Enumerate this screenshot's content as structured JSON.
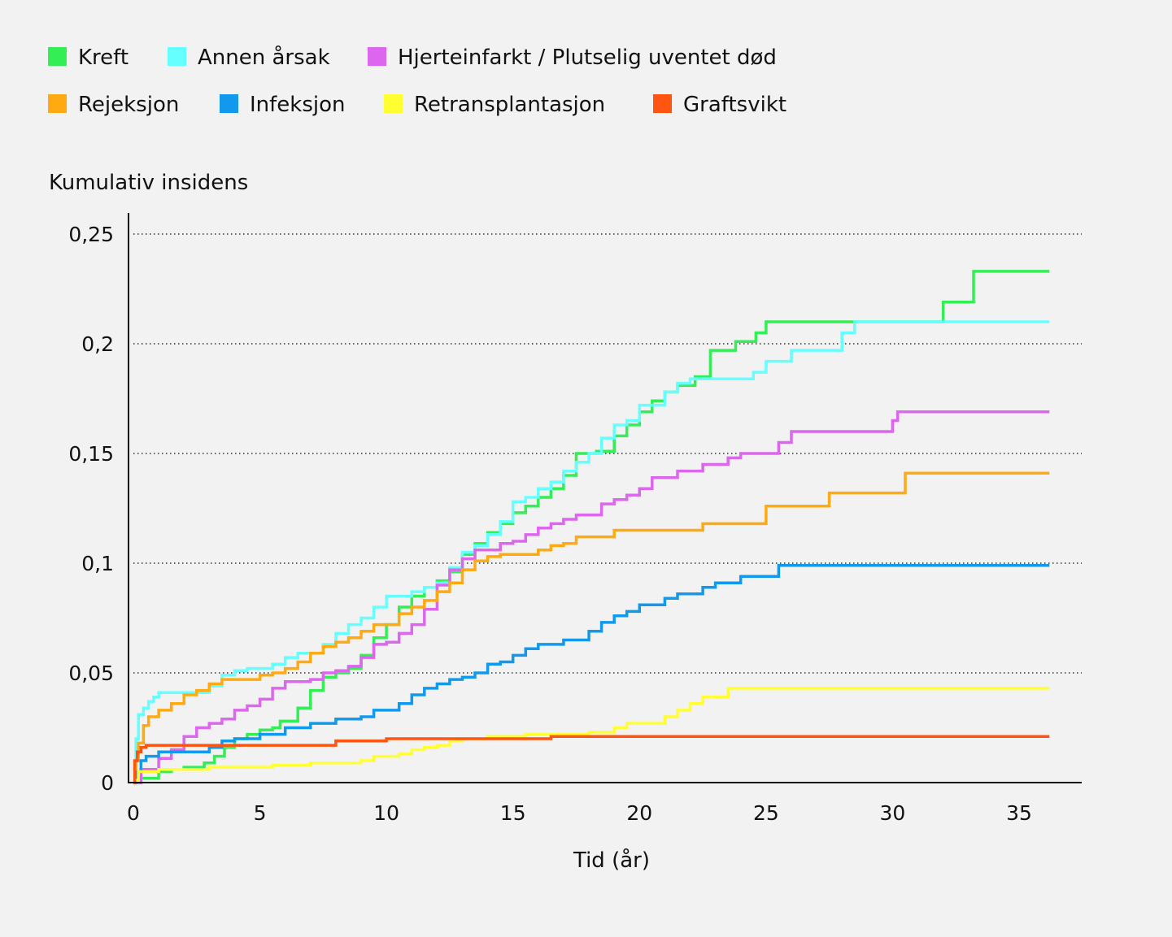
{
  "chart_data": {
    "type": "line",
    "step": true,
    "ylabel": "Kumulativ insidens",
    "xlabel": "Tid (år)",
    "xlim": [
      0,
      37.2
    ],
    "ylim": [
      0,
      0.25
    ],
    "x_ticks": [
      0,
      5,
      10,
      15,
      20,
      25,
      30,
      35
    ],
    "x_tick_labels": [
      "0",
      "5",
      "10",
      "15",
      "20",
      "25",
      "30",
      "35"
    ],
    "y_ticks": [
      0,
      0.05,
      0.1,
      0.15,
      0.2,
      0.25
    ],
    "y_tick_labels": [
      "0",
      "0,05",
      "0,1",
      "0,15",
      "0,2",
      "0,25"
    ],
    "grid": "horizontal dotted",
    "legend_position": "top",
    "series": [
      {
        "name": "Kreft",
        "color": "#33ee55",
        "points": [
          [
            0,
            0
          ],
          [
            0.3,
            0.002
          ],
          [
            1,
            0.005
          ],
          [
            1.5,
            0.006
          ],
          [
            2,
            0.007
          ],
          [
            2.8,
            0.009
          ],
          [
            3.2,
            0.012
          ],
          [
            3.6,
            0.016
          ],
          [
            4,
            0.02
          ],
          [
            4.5,
            0.022
          ],
          [
            5,
            0.024
          ],
          [
            5.5,
            0.025
          ],
          [
            5.8,
            0.028
          ],
          [
            6.5,
            0.034
          ],
          [
            7,
            0.042
          ],
          [
            7.5,
            0.048
          ],
          [
            8,
            0.05
          ],
          [
            8.5,
            0.052
          ],
          [
            9,
            0.058
          ],
          [
            9.5,
            0.066
          ],
          [
            10,
            0.072
          ],
          [
            10.5,
            0.08
          ],
          [
            11,
            0.085
          ],
          [
            11.5,
            0.089
          ],
          [
            12,
            0.092
          ],
          [
            12.5,
            0.096
          ],
          [
            13,
            0.104
          ],
          [
            13.5,
            0.109
          ],
          [
            14,
            0.114
          ],
          [
            14.5,
            0.118
          ],
          [
            15,
            0.123
          ],
          [
            15.5,
            0.126
          ],
          [
            16,
            0.13
          ],
          [
            16.5,
            0.134
          ],
          [
            17,
            0.14
          ],
          [
            17.5,
            0.15
          ],
          [
            18.3,
            0.151
          ],
          [
            19,
            0.158
          ],
          [
            19.5,
            0.163
          ],
          [
            20,
            0.169
          ],
          [
            20.5,
            0.174
          ],
          [
            21,
            0.178
          ],
          [
            21.5,
            0.181
          ],
          [
            22.2,
            0.185
          ],
          [
            22.8,
            0.197
          ],
          [
            23.8,
            0.201
          ],
          [
            24.6,
            0.205
          ],
          [
            25,
            0.21
          ],
          [
            32,
            0.219
          ],
          [
            33.2,
            0.233
          ],
          [
            36.2,
            0.233
          ]
        ]
      },
      {
        "name": "Annen årsak",
        "color": "#66ffff",
        "points": [
          [
            0,
            0.005
          ],
          [
            0.1,
            0.02
          ],
          [
            0.2,
            0.031
          ],
          [
            0.4,
            0.034
          ],
          [
            0.6,
            0.037
          ],
          [
            0.8,
            0.039
          ],
          [
            1,
            0.041
          ],
          [
            2,
            0.041
          ],
          [
            3,
            0.044
          ],
          [
            3.5,
            0.049
          ],
          [
            4,
            0.051
          ],
          [
            4.5,
            0.052
          ],
          [
            5.5,
            0.054
          ],
          [
            6,
            0.057
          ],
          [
            6.5,
            0.059
          ],
          [
            7.5,
            0.063
          ],
          [
            8,
            0.068
          ],
          [
            8.5,
            0.072
          ],
          [
            9,
            0.075
          ],
          [
            9.5,
            0.08
          ],
          [
            10,
            0.085
          ],
          [
            11,
            0.087
          ],
          [
            11.5,
            0.089
          ],
          [
            12,
            0.091
          ],
          [
            12.5,
            0.098
          ],
          [
            13,
            0.105
          ],
          [
            13.5,
            0.108
          ],
          [
            14,
            0.113
          ],
          [
            14.5,
            0.119
          ],
          [
            15,
            0.128
          ],
          [
            15.5,
            0.13
          ],
          [
            16,
            0.134
          ],
          [
            16.5,
            0.137
          ],
          [
            17,
            0.142
          ],
          [
            17.5,
            0.146
          ],
          [
            18,
            0.15
          ],
          [
            18.5,
            0.157
          ],
          [
            19,
            0.163
          ],
          [
            19.5,
            0.165
          ],
          [
            20,
            0.172
          ],
          [
            21,
            0.178
          ],
          [
            21.5,
            0.182
          ],
          [
            22,
            0.184
          ],
          [
            24.5,
            0.187
          ],
          [
            25,
            0.192
          ],
          [
            26,
            0.197
          ],
          [
            28,
            0.205
          ],
          [
            28.5,
            0.21
          ],
          [
            36.2,
            0.21
          ]
        ]
      },
      {
        "name": "Hjerteinfarkt / Plutselig uventet død",
        "color": "#dd66ee",
        "points": [
          [
            0,
            0
          ],
          [
            0.3,
            0.006
          ],
          [
            1,
            0.011
          ],
          [
            1.5,
            0.015
          ],
          [
            2,
            0.021
          ],
          [
            2.5,
            0.025
          ],
          [
            3,
            0.027
          ],
          [
            3.5,
            0.029
          ],
          [
            4,
            0.033
          ],
          [
            4.5,
            0.035
          ],
          [
            5,
            0.038
          ],
          [
            5.5,
            0.043
          ],
          [
            6,
            0.046
          ],
          [
            7,
            0.047
          ],
          [
            7.5,
            0.05
          ],
          [
            8,
            0.051
          ],
          [
            8.5,
            0.053
          ],
          [
            9,
            0.057
          ],
          [
            9.5,
            0.063
          ],
          [
            10,
            0.064
          ],
          [
            10.5,
            0.068
          ],
          [
            11,
            0.072
          ],
          [
            11.5,
            0.079
          ],
          [
            12,
            0.09
          ],
          [
            12.5,
            0.097
          ],
          [
            13,
            0.102
          ],
          [
            13.5,
            0.106
          ],
          [
            14.5,
            0.109
          ],
          [
            15,
            0.11
          ],
          [
            15.5,
            0.113
          ],
          [
            16,
            0.116
          ],
          [
            16.5,
            0.118
          ],
          [
            17,
            0.12
          ],
          [
            17.5,
            0.122
          ],
          [
            18.5,
            0.127
          ],
          [
            19,
            0.129
          ],
          [
            19.5,
            0.131
          ],
          [
            20,
            0.134
          ],
          [
            20.5,
            0.139
          ],
          [
            21.5,
            0.142
          ],
          [
            22.5,
            0.145
          ],
          [
            23.5,
            0.148
          ],
          [
            24,
            0.15
          ],
          [
            25.5,
            0.155
          ],
          [
            26,
            0.16
          ],
          [
            30,
            0.165
          ],
          [
            30.2,
            0.169
          ],
          [
            36.2,
            0.169
          ]
        ]
      },
      {
        "name": "Rejeksjon",
        "color": "#ffaa11",
        "points": [
          [
            0,
            0
          ],
          [
            0.1,
            0.01
          ],
          [
            0.2,
            0.018
          ],
          [
            0.4,
            0.026
          ],
          [
            0.6,
            0.03
          ],
          [
            1,
            0.033
          ],
          [
            1.5,
            0.036
          ],
          [
            2,
            0.04
          ],
          [
            2.5,
            0.042
          ],
          [
            3,
            0.045
          ],
          [
            3.5,
            0.047
          ],
          [
            5,
            0.049
          ],
          [
            5.5,
            0.05
          ],
          [
            6,
            0.052
          ],
          [
            6.5,
            0.055
          ],
          [
            7,
            0.059
          ],
          [
            7.5,
            0.062
          ],
          [
            8,
            0.064
          ],
          [
            8.5,
            0.066
          ],
          [
            9,
            0.069
          ],
          [
            9.5,
            0.072
          ],
          [
            10.5,
            0.077
          ],
          [
            11,
            0.08
          ],
          [
            11.5,
            0.083
          ],
          [
            12,
            0.087
          ],
          [
            12.5,
            0.091
          ],
          [
            13,
            0.097
          ],
          [
            13.5,
            0.101
          ],
          [
            14,
            0.103
          ],
          [
            14.5,
            0.104
          ],
          [
            16,
            0.106
          ],
          [
            16.5,
            0.108
          ],
          [
            17,
            0.109
          ],
          [
            17.5,
            0.112
          ],
          [
            19,
            0.115
          ],
          [
            22,
            0.115
          ],
          [
            22.5,
            0.118
          ],
          [
            25,
            0.126
          ],
          [
            27.5,
            0.132
          ],
          [
            30.5,
            0.141
          ],
          [
            36.2,
            0.141
          ]
        ]
      },
      {
        "name": "Infeksjon",
        "color": "#1199ee",
        "points": [
          [
            0,
            0
          ],
          [
            0.1,
            0.005
          ],
          [
            0.3,
            0.01
          ],
          [
            0.5,
            0.012
          ],
          [
            1,
            0.014
          ],
          [
            2,
            0.014
          ],
          [
            3,
            0.016
          ],
          [
            3.5,
            0.019
          ],
          [
            4,
            0.02
          ],
          [
            5,
            0.022
          ],
          [
            6,
            0.025
          ],
          [
            7,
            0.027
          ],
          [
            8,
            0.029
          ],
          [
            9,
            0.03
          ],
          [
            9.5,
            0.033
          ],
          [
            10.5,
            0.036
          ],
          [
            11,
            0.04
          ],
          [
            11.5,
            0.043
          ],
          [
            12,
            0.045
          ],
          [
            12.5,
            0.047
          ],
          [
            13,
            0.048
          ],
          [
            13.5,
            0.05
          ],
          [
            14,
            0.054
          ],
          [
            14.5,
            0.055
          ],
          [
            15,
            0.058
          ],
          [
            15.5,
            0.061
          ],
          [
            16,
            0.063
          ],
          [
            17,
            0.065
          ],
          [
            18,
            0.069
          ],
          [
            18.5,
            0.073
          ],
          [
            19,
            0.076
          ],
          [
            19.5,
            0.078
          ],
          [
            20,
            0.081
          ],
          [
            21,
            0.084
          ],
          [
            21.5,
            0.086
          ],
          [
            22.5,
            0.089
          ],
          [
            23,
            0.091
          ],
          [
            24,
            0.094
          ],
          [
            25.5,
            0.099
          ],
          [
            36.2,
            0.099
          ]
        ]
      },
      {
        "name": "Retransplantasjon",
        "color": "#ffff33",
        "points": [
          [
            0,
            0.001
          ],
          [
            0.2,
            0.005
          ],
          [
            1,
            0.006
          ],
          [
            3,
            0.007
          ],
          [
            4,
            0.007
          ],
          [
            5,
            0.007
          ],
          [
            5.5,
            0.008
          ],
          [
            7,
            0.009
          ],
          [
            9,
            0.01
          ],
          [
            9.5,
            0.012
          ],
          [
            10.5,
            0.013
          ],
          [
            11,
            0.015
          ],
          [
            11.5,
            0.016
          ],
          [
            12,
            0.017
          ],
          [
            12.5,
            0.019
          ],
          [
            13,
            0.02
          ],
          [
            14,
            0.021
          ],
          [
            15.5,
            0.022
          ],
          [
            17,
            0.022
          ],
          [
            18,
            0.023
          ],
          [
            19,
            0.025
          ],
          [
            19.5,
            0.027
          ],
          [
            21,
            0.03
          ],
          [
            21.5,
            0.033
          ],
          [
            22,
            0.036
          ],
          [
            22.5,
            0.039
          ],
          [
            23.5,
            0.043
          ],
          [
            36.2,
            0.043
          ]
        ]
      },
      {
        "name": "Graftsvikt",
        "color": "#ff5511",
        "points": [
          [
            0,
            0
          ],
          [
            0.05,
            0.01
          ],
          [
            0.15,
            0.014
          ],
          [
            0.3,
            0.016
          ],
          [
            0.5,
            0.017
          ],
          [
            4,
            0.017
          ],
          [
            8,
            0.019
          ],
          [
            10,
            0.02
          ],
          [
            12,
            0.02
          ],
          [
            14,
            0.02
          ],
          [
            16.5,
            0.021
          ],
          [
            36.2,
            0.021
          ]
        ]
      }
    ]
  }
}
